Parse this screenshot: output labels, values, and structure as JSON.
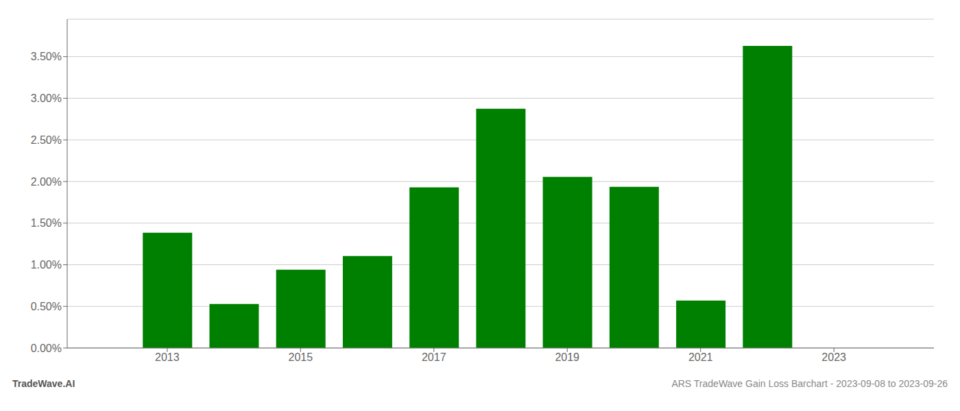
{
  "chart_data": {
    "type": "bar",
    "title": "ARS TradeWave Gain Loss Barchart - 2023-09-08 to 2023-09-26",
    "annotations": [
      "TradeWave.AI"
    ],
    "x": [
      2013,
      2014,
      2015,
      2016,
      2017,
      2018,
      2019,
      2020,
      2021,
      2022
    ],
    "values": [
      0.01385,
      0.00528,
      0.0094,
      0.01105,
      0.0193,
      0.02875,
      0.02055,
      0.01935,
      0.0057,
      0.0363
    ],
    "color": "#008000",
    "xlim": [
      2011.5,
      2024.5
    ],
    "xticks": [
      2013,
      2015,
      2017,
      2019,
      2021,
      2023
    ],
    "ylim": [
      0.0,
      0.0395
    ],
    "yticks": [
      {
        "value": 0.0,
        "label": "0.00%"
      },
      {
        "value": 0.005,
        "label": "0.50%"
      },
      {
        "value": 0.01,
        "label": "1.00%"
      },
      {
        "value": 0.015,
        "label": "1.50%"
      },
      {
        "value": 0.02,
        "label": "2.00%"
      },
      {
        "value": 0.025,
        "label": "2.50%"
      },
      {
        "value": 0.03,
        "label": "3.00%"
      },
      {
        "value": 0.035,
        "label": "3.50%"
      }
    ],
    "grid": true
  }
}
